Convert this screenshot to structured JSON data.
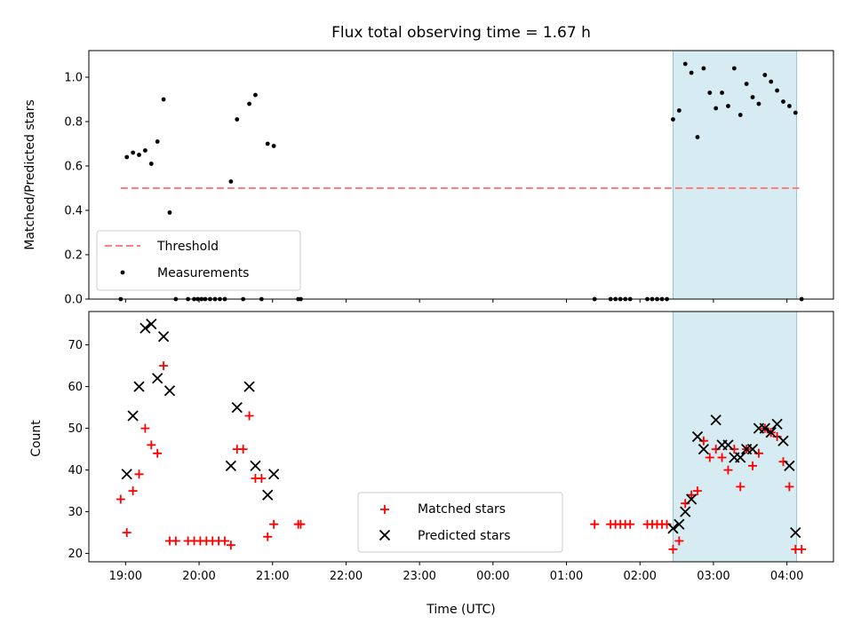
{
  "chart_data": [
    {
      "type": "scatter",
      "title": "Flux total observing time = 1.67 h",
      "xlabel": "",
      "ylabel": "Matched/Predicted stars",
      "ylim": [
        0.0,
        1.12
      ],
      "yticks": [
        "0.0",
        "0.2",
        "0.4",
        "0.6",
        "0.8",
        "1.0"
      ],
      "ytick_values": [
        0.0,
        0.2,
        0.4,
        0.6,
        0.8,
        1.0
      ],
      "shaded_region": {
        "x_start": "02:27",
        "x_end": "04:08",
        "color": "#add8e6"
      },
      "threshold": {
        "name": "Threshold",
        "value": 0.5,
        "x_start": "18:56",
        "x_end": "04:10",
        "color": "#ff7f7f",
        "style": "dashed"
      },
      "legend": {
        "placement": "lower-left",
        "entries": [
          "Threshold",
          "Measurements"
        ]
      },
      "series": [
        {
          "name": "Measurements",
          "marker": "dot",
          "color": "#000000",
          "points": [
            [
              "18:56",
              0.0
            ],
            [
              "19:01",
              0.64
            ],
            [
              "19:06",
              0.66
            ],
            [
              "19:11",
              0.65
            ],
            [
              "19:16",
              0.67
            ],
            [
              "19:21",
              0.61
            ],
            [
              "19:26",
              0.71
            ],
            [
              "19:31",
              0.9
            ],
            [
              "19:36",
              0.39
            ],
            [
              "19:41",
              0.0
            ],
            [
              "19:51",
              0.0
            ],
            [
              "19:56",
              0.0
            ],
            [
              "19:59",
              0.0
            ],
            [
              "20:02",
              0.0
            ],
            [
              "20:05",
              0.0
            ],
            [
              "20:09",
              0.0
            ],
            [
              "20:13",
              0.0
            ],
            [
              "20:17",
              0.0
            ],
            [
              "20:21",
              0.0
            ],
            [
              "20:26",
              0.53
            ],
            [
              "20:31",
              0.81
            ],
            [
              "20:36",
              0.0
            ],
            [
              "20:41",
              0.88
            ],
            [
              "20:46",
              0.92
            ],
            [
              "20:51",
              0.0
            ],
            [
              "20:56",
              0.7
            ],
            [
              "21:01",
              0.69
            ],
            [
              "21:21",
              0.0
            ],
            [
              "21:23",
              0.0
            ],
            [
              "01:23",
              0.0
            ],
            [
              "01:36",
              0.0
            ],
            [
              "01:40",
              0.0
            ],
            [
              "01:44",
              0.0
            ],
            [
              "01:48",
              0.0
            ],
            [
              "01:52",
              0.0
            ],
            [
              "02:06",
              0.0
            ],
            [
              "02:10",
              0.0
            ],
            [
              "02:14",
              0.0
            ],
            [
              "02:18",
              0.0
            ],
            [
              "02:22",
              0.0
            ],
            [
              "02:27",
              0.81
            ],
            [
              "02:32",
              0.85
            ],
            [
              "02:37",
              1.06
            ],
            [
              "02:42",
              1.02
            ],
            [
              "02:47",
              0.73
            ],
            [
              "02:52",
              1.04
            ],
            [
              "02:57",
              0.93
            ],
            [
              "03:02",
              0.86
            ],
            [
              "03:07",
              0.93
            ],
            [
              "03:12",
              0.87
            ],
            [
              "03:17",
              1.04
            ],
            [
              "03:22",
              0.83
            ],
            [
              "03:27",
              0.97
            ],
            [
              "03:32",
              0.91
            ],
            [
              "03:37",
              0.88
            ],
            [
              "03:42",
              1.01
            ],
            [
              "03:47",
              0.98
            ],
            [
              "03:52",
              0.94
            ],
            [
              "03:57",
              0.89
            ],
            [
              "04:02",
              0.87
            ],
            [
              "04:07",
              0.84
            ],
            [
              "04:12",
              0.0
            ]
          ]
        }
      ]
    },
    {
      "type": "scatter",
      "title": "",
      "xlabel": "Time (UTC)",
      "ylabel": "Count",
      "ylim": [
        18,
        78
      ],
      "yticks": [
        "20",
        "30",
        "40",
        "50",
        "60",
        "70"
      ],
      "ytick_values": [
        20,
        30,
        40,
        50,
        60,
        70
      ],
      "xlim": [
        "18:30",
        "04:38"
      ],
      "xticks": [
        "19:00",
        "20:00",
        "21:00",
        "22:00",
        "23:00",
        "00:00",
        "01:00",
        "02:00",
        "03:00",
        "04:00"
      ],
      "shaded_region": {
        "x_start": "02:27",
        "x_end": "04:08",
        "color": "#add8e6"
      },
      "legend": {
        "placement": "lower-center",
        "entries": [
          "Matched stars",
          "Predicted stars"
        ]
      },
      "series": [
        {
          "name": "Matched stars",
          "marker": "plus",
          "color": "#ff0000",
          "points": [
            [
              "18:56",
              33
            ],
            [
              "19:01",
              25
            ],
            [
              "19:06",
              35
            ],
            [
              "19:11",
              39
            ],
            [
              "19:16",
              50
            ],
            [
              "19:21",
              46
            ],
            [
              "19:26",
              44
            ],
            [
              "19:31",
              65
            ],
            [
              "19:36",
              23
            ],
            [
              "19:41",
              23
            ],
            [
              "19:51",
              23
            ],
            [
              "19:56",
              23
            ],
            [
              "20:01",
              23
            ],
            [
              "20:06",
              23
            ],
            [
              "20:11",
              23
            ],
            [
              "20:16",
              23
            ],
            [
              "20:21",
              23
            ],
            [
              "20:26",
              22
            ],
            [
              "20:31",
              45
            ],
            [
              "20:36",
              45
            ],
            [
              "20:41",
              53
            ],
            [
              "20:46",
              38
            ],
            [
              "20:51",
              38
            ],
            [
              "20:56",
              24
            ],
            [
              "21:01",
              27
            ],
            [
              "21:21",
              27
            ],
            [
              "21:23",
              27
            ],
            [
              "01:23",
              27
            ],
            [
              "01:36",
              27
            ],
            [
              "01:40",
              27
            ],
            [
              "01:44",
              27
            ],
            [
              "01:48",
              27
            ],
            [
              "01:52",
              27
            ],
            [
              "02:06",
              27
            ],
            [
              "02:10",
              27
            ],
            [
              "02:14",
              27
            ],
            [
              "02:18",
              27
            ],
            [
              "02:22",
              27
            ],
            [
              "02:27",
              21
            ],
            [
              "02:32",
              23
            ],
            [
              "02:37",
              32
            ],
            [
              "02:42",
              34
            ],
            [
              "02:47",
              35
            ],
            [
              "02:52",
              47
            ],
            [
              "02:57",
              43
            ],
            [
              "03:02",
              45
            ],
            [
              "03:07",
              43
            ],
            [
              "03:12",
              40
            ],
            [
              "03:17",
              45
            ],
            [
              "03:22",
              36
            ],
            [
              "03:27",
              45
            ],
            [
              "03:32",
              41
            ],
            [
              "03:37",
              44
            ],
            [
              "03:42",
              50
            ],
            [
              "03:47",
              49
            ],
            [
              "03:52",
              48
            ],
            [
              "03:57",
              42
            ],
            [
              "04:02",
              36
            ],
            [
              "04:07",
              21
            ],
            [
              "04:12",
              21
            ]
          ]
        },
        {
          "name": "Predicted stars",
          "marker": "x",
          "color": "#000000",
          "points": [
            [
              "19:01",
              39
            ],
            [
              "19:06",
              53
            ],
            [
              "19:11",
              60
            ],
            [
              "19:16",
              74
            ],
            [
              "19:21",
              75
            ],
            [
              "19:26",
              62
            ],
            [
              "19:31",
              72
            ],
            [
              "19:36",
              59
            ],
            [
              "20:26",
              41
            ],
            [
              "20:31",
              55
            ],
            [
              "20:41",
              60
            ],
            [
              "20:46",
              41
            ],
            [
              "20:56",
              34
            ],
            [
              "21:01",
              39
            ],
            [
              "02:27",
              26
            ],
            [
              "02:32",
              27
            ],
            [
              "02:37",
              30
            ],
            [
              "02:42",
              33
            ],
            [
              "02:47",
              48
            ],
            [
              "02:52",
              45
            ],
            [
              "03:02",
              52
            ],
            [
              "03:07",
              46
            ],
            [
              "03:12",
              46
            ],
            [
              "03:17",
              43
            ],
            [
              "03:22",
              43
            ],
            [
              "03:27",
              45
            ],
            [
              "03:32",
              45
            ],
            [
              "03:37",
              50
            ],
            [
              "03:42",
              50
            ],
            [
              "03:47",
              49
            ],
            [
              "03:52",
              51
            ],
            [
              "03:57",
              47
            ],
            [
              "04:02",
              41
            ],
            [
              "04:07",
              25
            ]
          ]
        }
      ]
    }
  ]
}
